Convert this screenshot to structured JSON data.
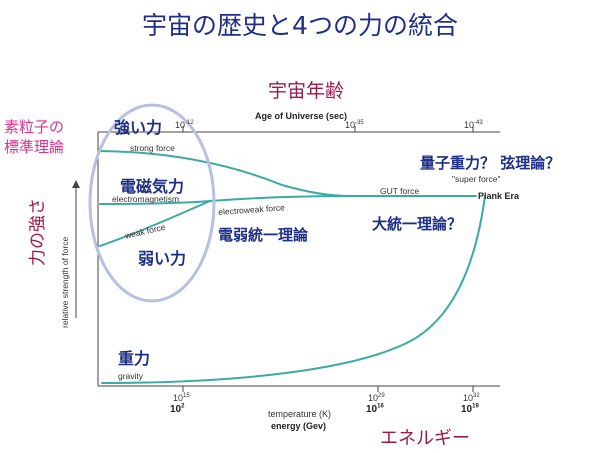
{
  "title": "宇宙の歴史と4つの力の統合",
  "top_axis": {
    "heading": "宇宙年齢",
    "label": "Age of Universe (sec)",
    "ticks": [
      {
        "base": "10",
        "exp": "-12"
      },
      {
        "base": "10",
        "exp": "-35"
      },
      {
        "base": "10",
        "exp": "-43"
      }
    ]
  },
  "left": {
    "standard_model": [
      "素粒子の",
      "標準理論"
    ],
    "strength_jp": "力の強さ",
    "strength_en": "relative strength of force"
  },
  "bottom_axis": {
    "temp_label": "temperature (K)",
    "energy_label": "energy (Gev)",
    "heading": "エネルギー",
    "temp_ticks": [
      {
        "base": "10",
        "exp": "15"
      },
      {
        "base": "10",
        "exp": "29"
      },
      {
        "base": "10",
        "exp": "32"
      }
    ],
    "energy_ticks": [
      {
        "base": "10",
        "exp": "2"
      },
      {
        "base": "10",
        "exp": "16"
      },
      {
        "base": "10",
        "exp": "19"
      }
    ]
  },
  "forces": {
    "strong_jp": "強い力",
    "strong_en": "strong force",
    "em_jp": "電磁気力",
    "em_en": "electromagnetism",
    "weak_jp": "弱い力",
    "weak_en": "weak force",
    "electroweak_en": "electroweak force",
    "electroweak_jp": "電弱統一理論",
    "gut_en": "GUT force",
    "gut_jp": "大統一理論？",
    "super_en": "\"super force\"",
    "quantum_jp": "量子重力？ 弦理論？",
    "plank": "Plank Era",
    "gravity_jp": "重力",
    "gravity_en": "gravity"
  },
  "colors": {
    "curve": "#3aaaa4",
    "ellipse": "#b9bfe0",
    "title": "#1f2f86",
    "heading": "#9a1a4e",
    "pink": "#e0308c"
  }
}
